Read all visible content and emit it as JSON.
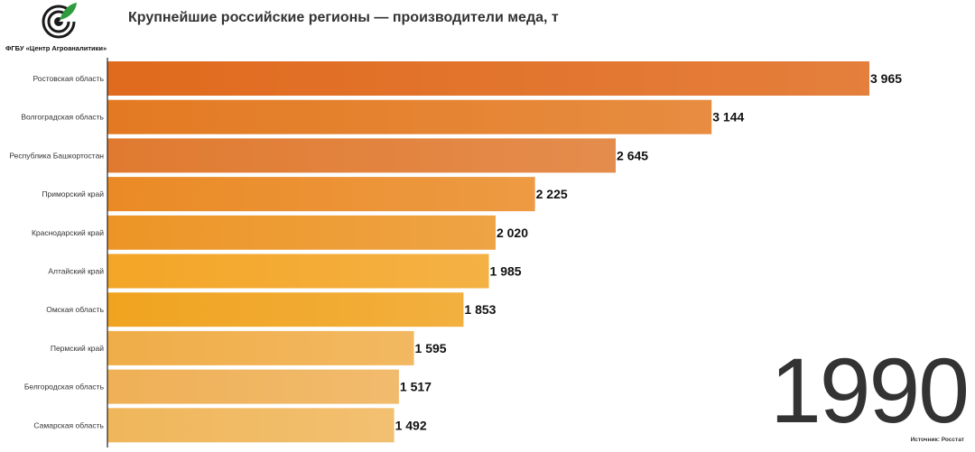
{
  "header": {
    "org_name": "ФГБУ «Центр Агроаналитики»",
    "title": "Крупнейшие российские регионы — производители меда, т"
  },
  "footer": {
    "source": "Источник: Росстат"
  },
  "logo": {
    "icon": "agroanalytics-logo-icon",
    "color": "#2e9b3c"
  },
  "chart_data": {
    "type": "bar",
    "orientation": "horizontal",
    "year": "1990",
    "categories": [
      "Ростовская область",
      "Волгоградская область",
      "Республика Башкортостан",
      "Приморский край",
      "Краснодарский край",
      "Алтайский край",
      "Омская область",
      "Пермский край",
      "Белгородская область",
      "Самарская область"
    ],
    "values": [
      3965,
      3144,
      2645,
      2225,
      2020,
      1985,
      1853,
      1595,
      1517,
      1492
    ],
    "value_labels": [
      "3 965",
      "3 144",
      "2 645",
      "2 225",
      "2 020",
      "1 985",
      "1 853",
      "1 595",
      "1 517",
      "1 492"
    ],
    "colors": [
      "#e06a1d",
      "#e37a22",
      "#e07a30",
      "#ea8a25",
      "#ec9526",
      "#f3a526",
      "#f0a31f",
      "#f0ad48",
      "#efb056",
      "#f0b65a"
    ],
    "xlim": [
      0,
      3965
    ],
    "grid": false,
    "legend": false
  }
}
